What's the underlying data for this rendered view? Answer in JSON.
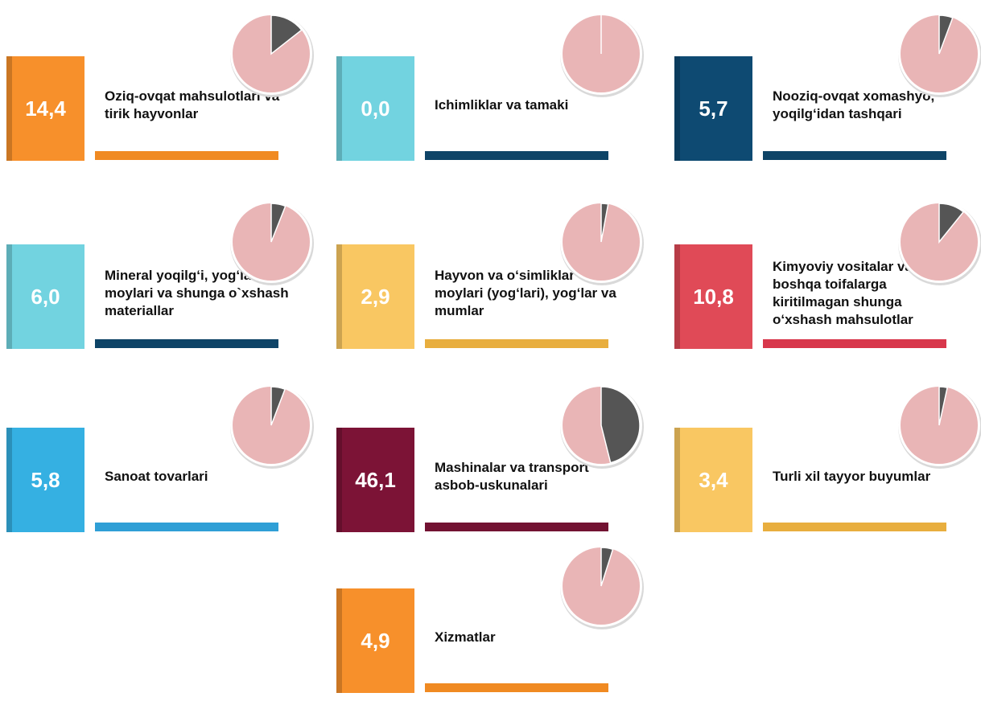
{
  "chart_data": {
    "type": "tiles",
    "categories": [
      "Oziq-ovqat mahsulotlari va tirik hayvonlar",
      "Ichimliklar va tamaki",
      "Nooziq-ovqat xomashyo, yoqilg‘idan tashqari",
      "Mineral yoqilg‘i, yog‘lash moylari va shunga o`xshash materiallar",
      "Hayvon va o‘simliklar moylari (yog‘lari), yog‘lar va mumlar",
      "Kimyoviy vositalar va boshqa toifalarga kiritilmagan shunga o‘xshash mahsulotlar",
      "Sanoat tovarlari",
      "Mashinalar va transport asbob-uskunalari",
      "Turli xil tayyor buyumlar",
      "Xizmatlar"
    ],
    "values": [
      14.4,
      0.0,
      5.7,
      6.0,
      2.9,
      10.8,
      5.8,
      46.1,
      3.4,
      4.9
    ],
    "value_labels": [
      "14,4",
      "0,0",
      "5,7",
      "6,0",
      "2,9",
      "10,8",
      "5,8",
      "46,1",
      "3,4",
      "4,9"
    ],
    "colors": [
      "#f7902b",
      "#72d3e0",
      "#0e4a72",
      "#72d3e0",
      "#f9c762",
      "#e04a57",
      "#35b0e2",
      "#7c1336",
      "#f9c762",
      "#f7902b"
    ],
    "bar_colors": [
      "#f08a22",
      "#0e4467",
      "#0e4467",
      "#0e4467",
      "#e8ae3e",
      "#d8374b",
      "#2f9fd6",
      "#721232",
      "#e8ae3e",
      "#f08a22"
    ],
    "pie_color": "#e9b5b6",
    "slice_color": "#555555"
  }
}
